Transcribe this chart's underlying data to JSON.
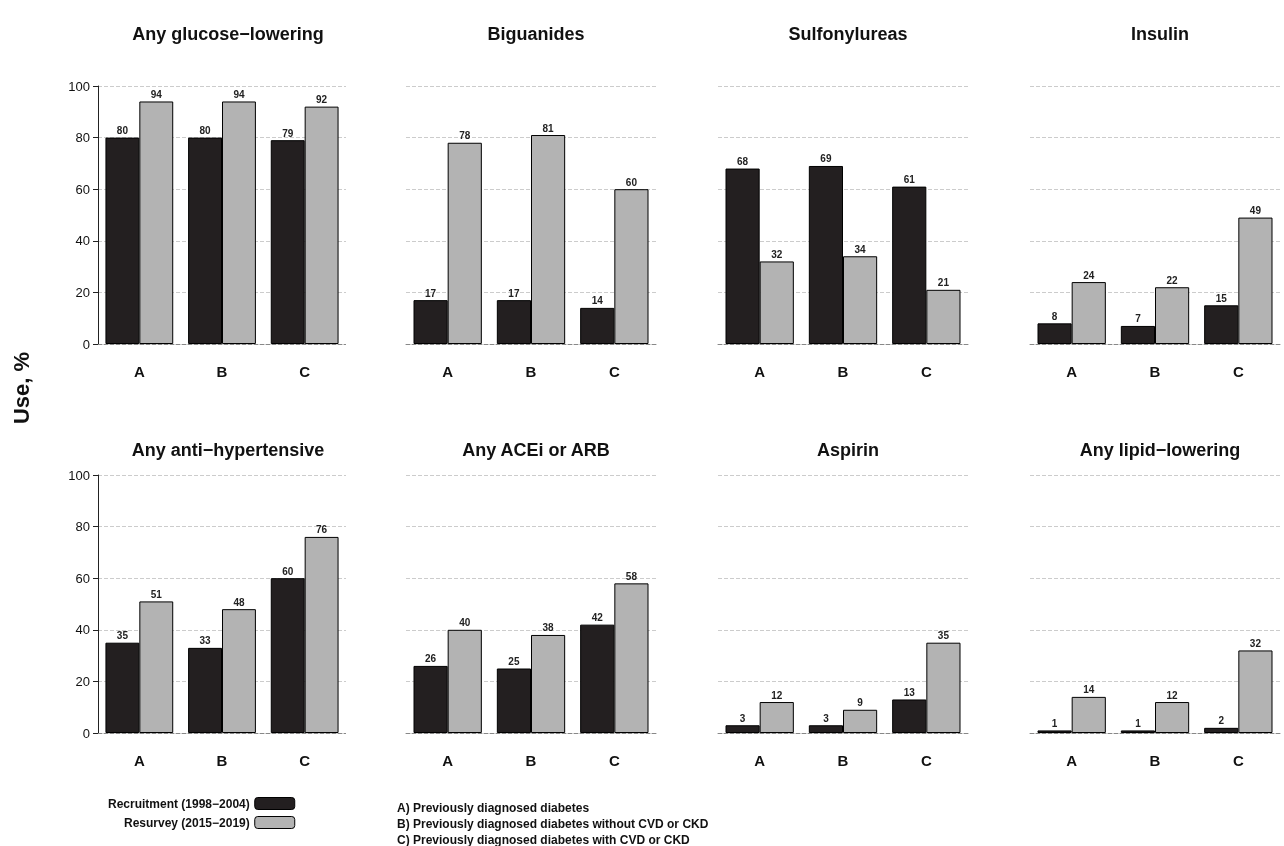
{
  "chart_data": [
    {
      "type": "bar",
      "title": "Any glucose−lowering",
      "ylabel": "Use, %",
      "categories": [
        "A",
        "B",
        "C"
      ],
      "series": [
        {
          "color": "#231f20",
          "values": [
            80,
            80,
            79
          ]
        },
        {
          "color": "#b3b3b3",
          "values": [
            94,
            94,
            92
          ]
        }
      ],
      "ylim": [
        0,
        100
      ],
      "yticks": [
        0,
        20,
        40,
        60,
        80,
        100
      ],
      "grid": "y",
      "data_labels": true
    },
    {
      "type": "bar",
      "title": "Biguanides",
      "categories": [
        "A",
        "B",
        "C"
      ],
      "series": [
        {
          "color": "#231f20",
          "values": [
            17,
            17,
            14
          ]
        },
        {
          "color": "#b3b3b3",
          "values": [
            78,
            81,
            60
          ]
        }
      ],
      "ylim": [
        0,
        100
      ],
      "yticks": [
        0,
        20,
        40,
        60,
        80,
        100
      ],
      "grid": "y",
      "data_labels": true,
      "tick_labels": "x"
    },
    {
      "type": "bar",
      "title": "Sulfonylureas",
      "categories": [
        "A",
        "B",
        "C"
      ],
      "series": [
        {
          "color": "#231f20",
          "values": [
            68,
            69,
            61
          ]
        },
        {
          "color": "#b3b3b3",
          "values": [
            32,
            34,
            21
          ]
        }
      ],
      "ylim": [
        0,
        100
      ],
      "yticks": [
        0,
        20,
        40,
        60,
        80,
        100
      ],
      "grid": "y",
      "data_labels": true,
      "tick_labels": "x"
    },
    {
      "type": "bar",
      "title": "Insulin",
      "categories": [
        "A",
        "B",
        "C"
      ],
      "series": [
        {
          "color": "#231f20",
          "values": [
            8,
            7,
            15
          ]
        },
        {
          "color": "#b3b3b3",
          "values": [
            24,
            22,
            49
          ]
        }
      ],
      "ylim": [
        0,
        100
      ],
      "yticks": [
        0,
        20,
        40,
        60,
        80,
        100
      ],
      "grid": "y",
      "data_labels": true,
      "tick_labels": "x"
    },
    {
      "type": "bar",
      "title": "Any anti−hypertensive",
      "categories": [
        "A",
        "B",
        "C"
      ],
      "series": [
        {
          "name": "Recruitment (1998−2004)",
          "color": "#231f20",
          "values": [
            35,
            33,
            60
          ]
        },
        {
          "name": "Resurvey (2015−2019)",
          "color": "#b3b3b3",
          "values": [
            51,
            48,
            76
          ]
        }
      ],
      "ylim": [
        0,
        100
      ],
      "yticks": [
        0,
        20,
        40,
        60,
        80,
        100
      ],
      "grid": "y",
      "data_labels": true,
      "legend": "bottom"
    },
    {
      "type": "bar",
      "title": "Any ACEi or ARB",
      "categories": [
        "A",
        "B",
        "C"
      ],
      "series": [
        {
          "color": "#231f20",
          "values": [
            26,
            25,
            42
          ]
        },
        {
          "color": "#b3b3b3",
          "values": [
            40,
            38,
            58
          ]
        }
      ],
      "ylim": [
        0,
        100
      ],
      "yticks": [
        0,
        20,
        40,
        60,
        80,
        100
      ],
      "grid": "y",
      "data_labels": true,
      "tick_labels": "x",
      "annotations": [
        "A) Previously diagnosed diabetes",
        "B) Previously diagnosed diabetes without CVD or CKD",
        "C) Previously diagnosed diabetes with CVD or CKD"
      ]
    },
    {
      "type": "bar",
      "title": "Aspirin",
      "categories": [
        "A",
        "B",
        "C"
      ],
      "series": [
        {
          "color": "#231f20",
          "values": [
            3,
            3,
            13
          ]
        },
        {
          "color": "#b3b3b3",
          "values": [
            12,
            9,
            35
          ]
        }
      ],
      "ylim": [
        0,
        100
      ],
      "yticks": [
        0,
        20,
        40,
        60,
        80,
        100
      ],
      "grid": "y",
      "data_labels": true,
      "tick_labels": "x"
    },
    {
      "type": "bar",
      "title": "Any lipid−lowering",
      "categories": [
        "A",
        "B",
        "C"
      ],
      "series": [
        {
          "color": "#231f20",
          "values": [
            1,
            1,
            2
          ]
        },
        {
          "color": "#b3b3b3",
          "values": [
            14,
            12,
            32
          ]
        }
      ],
      "ylim": [
        0,
        100
      ],
      "yticks": [
        0,
        20,
        40,
        60,
        80,
        100
      ],
      "grid": "y",
      "data_labels": true,
      "tick_labels": "x"
    }
  ]
}
